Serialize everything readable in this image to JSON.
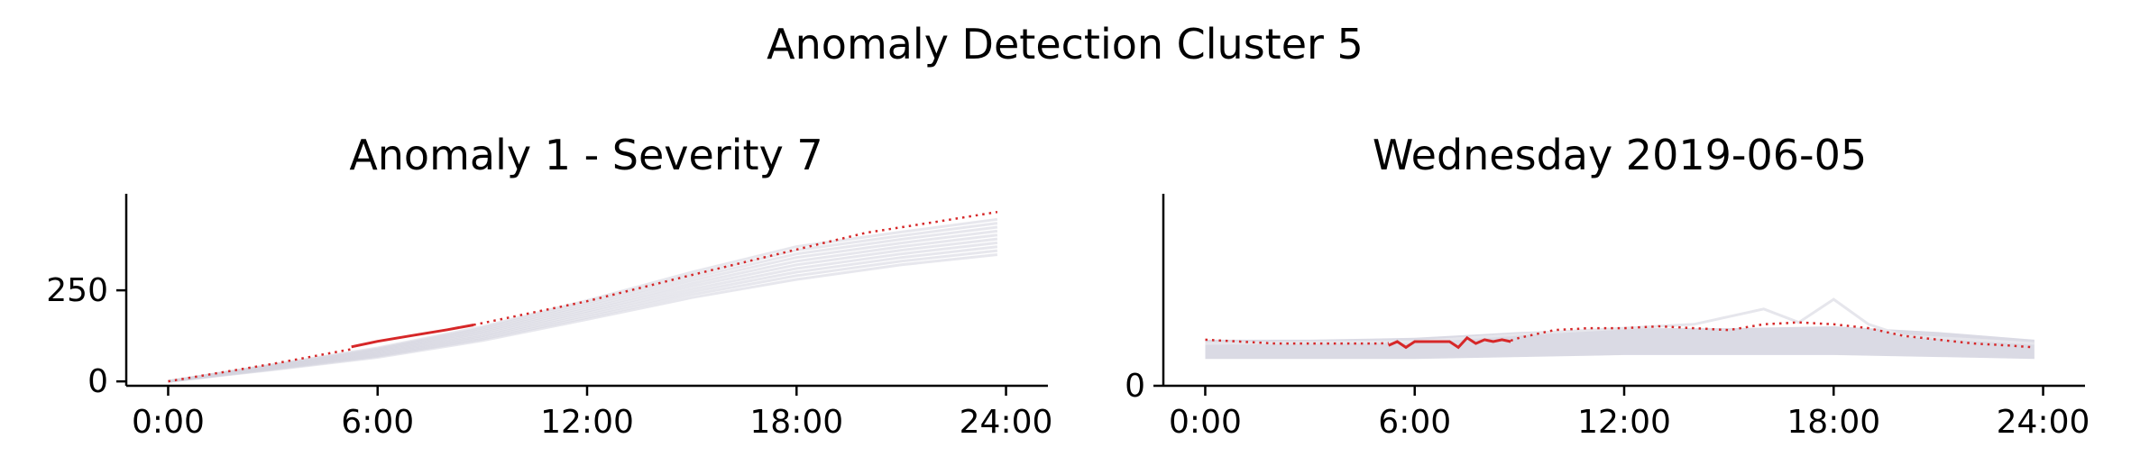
{
  "title": "Anomaly Detection Cluster 5",
  "chart_data": [
    {
      "type": "line",
      "title": "Anomaly 1 - Severity 7",
      "x_ticks": [
        "0:00",
        "6:00",
        "12:00",
        "18:00",
        "24:00"
      ],
      "xlim_hours": [
        -1.2,
        25.2
      ],
      "y_ticks": [
        "0",
        "250"
      ],
      "y_tick_values": [
        0,
        250
      ],
      "ylim": [
        -12,
        515
      ],
      "grid": false,
      "background_series": {
        "count": 10,
        "x_hours": [
          0,
          3,
          6,
          9,
          12,
          15,
          18,
          21,
          23.75
        ],
        "values_low": [
          0,
          32,
          66,
          112,
          170,
          230,
          280,
          320,
          348
        ],
        "values_high": [
          0,
          46,
          92,
          150,
          222,
          300,
          370,
          410,
          445
        ],
        "color": "#d3d3df"
      },
      "expected": {
        "x_hours": [
          0,
          3,
          6,
          9,
          12,
          15,
          18,
          20,
          22,
          23.75
        ],
        "values": [
          0,
          48,
          102,
          160,
          220,
          292,
          362,
          408,
          438,
          465
        ],
        "color": "#d62728",
        "style": "dotted"
      },
      "observed": {
        "x_hours": [
          5.25,
          6,
          7,
          8,
          8.75
        ],
        "values": [
          95,
          110,
          126,
          142,
          155
        ],
        "color": "#d62728",
        "style": "solid"
      }
    },
    {
      "type": "line",
      "title": "Wednesday 2019-06-05",
      "x_ticks": [
        "0:00",
        "6:00",
        "12:00",
        "18:00",
        "24:00"
      ],
      "xlim_hours": [
        -1.2,
        25.2
      ],
      "y_ticks": [
        "0"
      ],
      "y_tick_values": [
        0
      ],
      "ylim": [
        0,
        100
      ],
      "grid": false,
      "band": {
        "x_hours": [
          0,
          3,
          6,
          9,
          12,
          15,
          18,
          21,
          23.75
        ],
        "low": [
          14,
          14,
          14,
          15,
          16,
          16,
          16,
          15,
          14
        ],
        "high": [
          24,
          24,
          25,
          28,
          30,
          30,
          31,
          28,
          24
        ],
        "color": "#d3d3df"
      },
      "highlight_series": [
        {
          "x_hours": [
            0,
            6,
            10,
            12,
            14,
            15,
            16,
            17,
            18,
            19,
            20,
            22,
            23.75
          ],
          "values": [
            22,
            23,
            28,
            30,
            32,
            36,
            40,
            33,
            45,
            32,
            26,
            24,
            22
          ],
          "color": "#e6e6ec"
        }
      ],
      "expected": {
        "x_hours": [
          0,
          1,
          2,
          3,
          4,
          5,
          6,
          7,
          8,
          8.5,
          9,
          10,
          11,
          12,
          13,
          14,
          15,
          16,
          17,
          18,
          19,
          20,
          21,
          22,
          23,
          23.75
        ],
        "values": [
          24,
          23,
          22,
          22,
          22,
          22,
          23,
          23,
          24,
          22,
          25,
          29,
          30,
          30,
          31,
          30,
          29,
          32,
          33,
          32,
          30,
          26,
          24,
          22,
          21,
          20
        ],
        "color": "#d62728",
        "style": "dotted"
      },
      "observed": {
        "x_hours": [
          5.25,
          5.5,
          5.75,
          6,
          6.5,
          7,
          7.25,
          7.5,
          7.75,
          8,
          8.25,
          8.5,
          8.75
        ],
        "values": [
          21,
          23,
          20,
          23,
          23,
          23,
          20,
          25,
          22,
          24,
          23,
          24,
          23
        ],
        "color": "#d62728",
        "style": "solid"
      }
    }
  ]
}
